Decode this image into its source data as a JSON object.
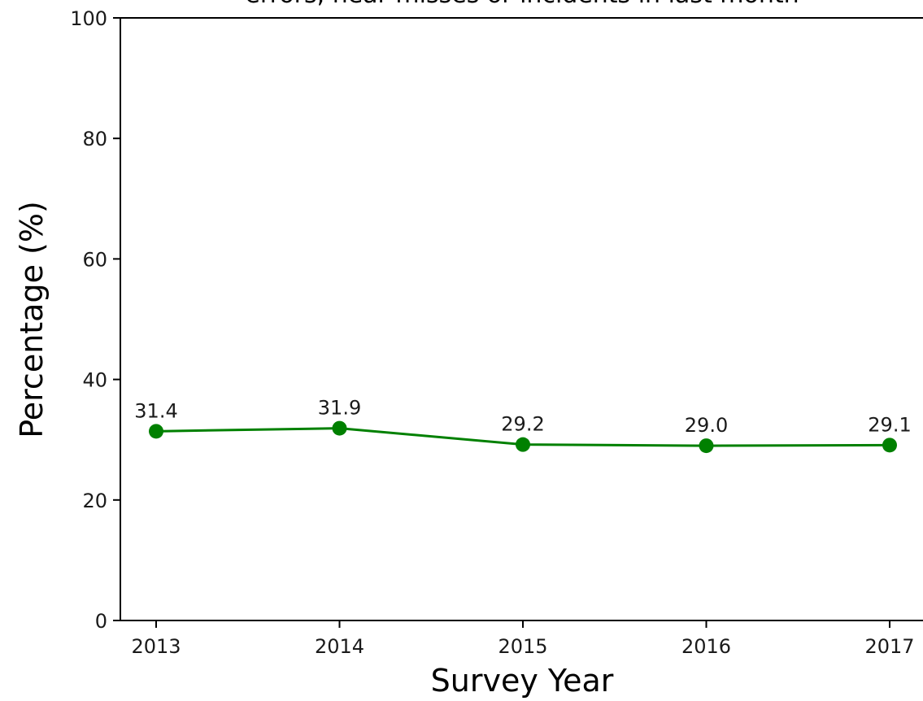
{
  "chart_data": {
    "type": "line",
    "title": "errors, near misses or incidents in last month",
    "xlabel": "Survey Year",
    "ylabel": "Percentage (%)",
    "x": [
      "2013",
      "2014",
      "2015",
      "2016",
      "2017"
    ],
    "series": [
      {
        "values": [
          31.4,
          31.9,
          29.2,
          29.0,
          29.1
        ],
        "labels": [
          "31.4",
          "31.9",
          "29.2",
          "29.0",
          "29.1"
        ],
        "color": "#008000",
        "marker": "circle"
      }
    ],
    "ylim": [
      0,
      100
    ],
    "yticks": [
      0,
      20,
      40,
      60,
      80,
      100
    ],
    "grid": false,
    "legend": "none"
  }
}
